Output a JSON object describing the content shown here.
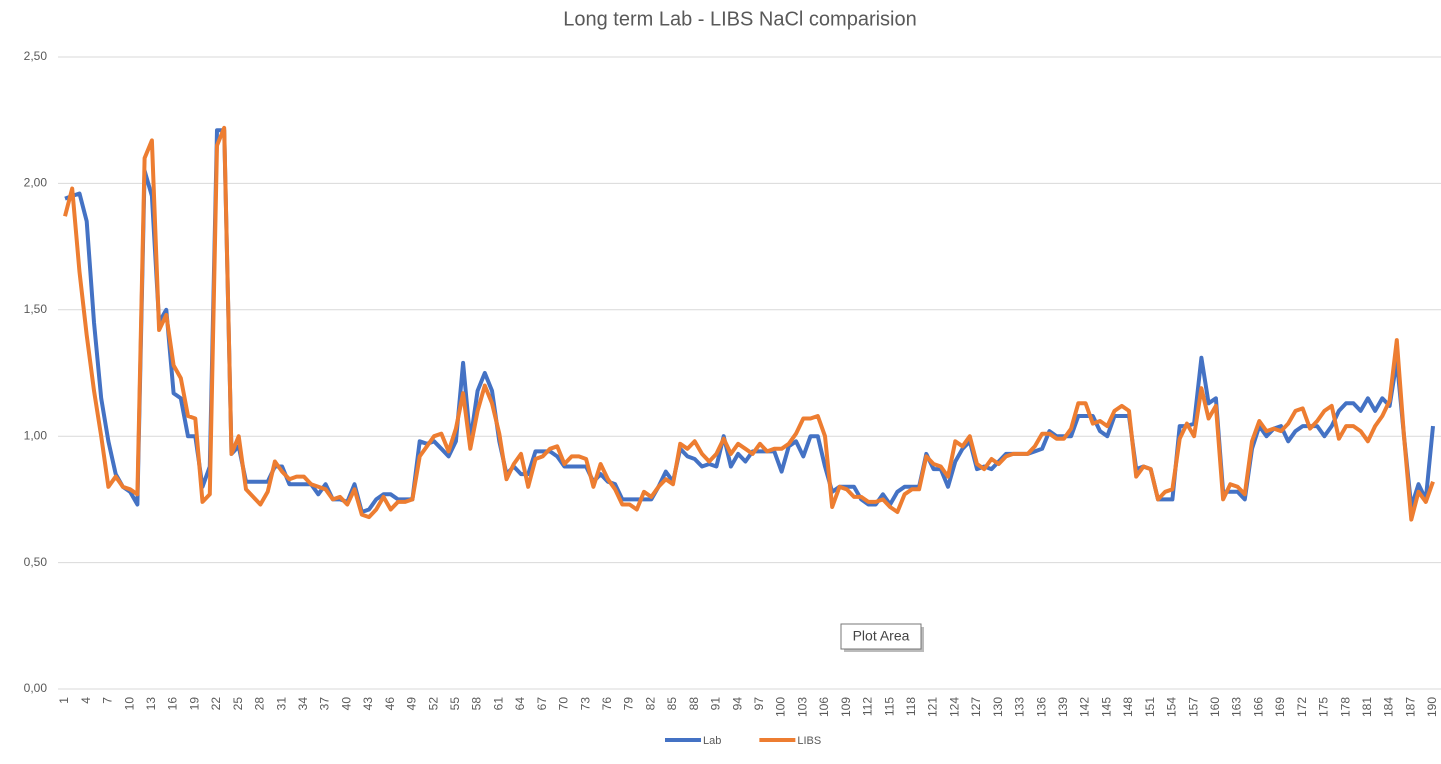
{
  "chart_data": {
    "type": "line",
    "title": "Long term Lab - LIBS NaCl comparision",
    "tooltip": "Plot Area",
    "x": [
      1,
      2,
      3,
      4,
      5,
      6,
      7,
      8,
      9,
      10,
      11,
      12,
      13,
      14,
      15,
      16,
      17,
      18,
      19,
      20,
      21,
      22,
      23,
      24,
      25,
      26,
      27,
      28,
      29,
      30,
      31,
      32,
      33,
      34,
      35,
      36,
      37,
      38,
      39,
      40,
      41,
      42,
      43,
      44,
      45,
      46,
      47,
      48,
      49,
      50,
      51,
      52,
      53,
      54,
      55,
      56,
      57,
      58,
      59,
      60,
      61,
      62,
      63,
      64,
      65,
      66,
      67,
      68,
      69,
      70,
      71,
      72,
      73,
      74,
      75,
      76,
      77,
      78,
      79,
      80,
      81,
      82,
      83,
      84,
      85,
      86,
      87,
      88,
      89,
      90,
      91,
      92,
      93,
      94,
      95,
      96,
      97,
      98,
      99,
      100,
      101,
      102,
      103,
      104,
      105,
      106,
      107,
      108,
      109,
      110,
      111,
      112,
      113,
      114,
      115,
      116,
      117,
      118,
      119,
      120,
      121,
      122,
      123,
      124,
      125,
      126,
      127,
      128,
      129,
      130,
      131,
      132,
      133,
      134,
      135,
      136,
      137,
      138,
      139,
      140,
      141,
      142,
      143,
      144,
      145,
      146,
      147,
      148,
      149,
      150,
      151,
      152,
      153,
      154,
      155,
      156,
      157,
      158,
      159,
      160,
      161,
      162,
      163,
      164,
      165,
      166,
      167,
      168,
      169,
      170,
      171,
      172,
      173,
      174,
      175,
      176,
      177,
      178,
      179,
      180,
      181,
      182,
      183,
      184,
      185,
      186,
      187,
      188,
      189,
      190
    ],
    "xlim": [
      1,
      190
    ],
    "xticks": [
      1,
      4,
      7,
      10,
      13,
      16,
      19,
      22,
      25,
      28,
      31,
      34,
      37,
      40,
      43,
      46,
      49,
      52,
      55,
      58,
      61,
      64,
      67,
      70,
      73,
      76,
      79,
      82,
      85,
      88,
      91,
      94,
      97,
      100,
      103,
      106,
      109,
      112,
      115,
      118,
      121,
      124,
      127,
      130,
      133,
      136,
      139,
      142,
      145,
      148,
      151,
      154,
      157,
      160,
      163,
      166,
      169,
      172,
      175,
      178,
      181,
      184,
      187,
      190
    ],
    "ylim": [
      0,
      2.5
    ],
    "yticks": [
      {
        "value": 0,
        "label": "0,00"
      },
      {
        "value": 0.5,
        "label": "0,50"
      },
      {
        "value": 1,
        "label": "1,00"
      },
      {
        "value": 1.5,
        "label": "1,50"
      },
      {
        "value": 2,
        "label": "2,00"
      },
      {
        "value": 2.5,
        "label": "2,50"
      }
    ],
    "grid": true,
    "legend": "bottom",
    "series": [
      {
        "name": "Lab",
        "color": "#4472c4",
        "values": [
          1.94,
          1.95,
          1.96,
          1.85,
          1.45,
          1.15,
          0.98,
          0.85,
          0.8,
          0.78,
          0.73,
          2.05,
          1.95,
          1.45,
          1.5,
          1.17,
          1.15,
          1.0,
          1.0,
          0.8,
          0.88,
          2.21,
          2.21,
          0.93,
          0.96,
          0.82,
          0.82,
          0.82,
          0.82,
          0.88,
          0.88,
          0.81,
          0.81,
          0.81,
          0.81,
          0.77,
          0.81,
          0.75,
          0.75,
          0.74,
          0.81,
          0.7,
          0.71,
          0.75,
          0.77,
          0.77,
          0.75,
          0.75,
          0.75,
          0.98,
          0.97,
          0.98,
          0.95,
          0.92,
          0.98,
          1.29,
          0.98,
          1.18,
          1.25,
          1.18,
          0.98,
          0.85,
          0.88,
          0.85,
          0.85,
          0.94,
          0.94,
          0.94,
          0.92,
          0.88,
          0.88,
          0.88,
          0.88,
          0.82,
          0.85,
          0.82,
          0.81,
          0.75,
          0.75,
          0.75,
          0.75,
          0.75,
          0.8,
          0.86,
          0.82,
          0.95,
          0.92,
          0.91,
          0.88,
          0.89,
          0.88,
          1.0,
          0.88,
          0.93,
          0.9,
          0.94,
          0.94,
          0.94,
          0.94,
          0.86,
          0.96,
          0.98,
          0.92,
          1.0,
          1.0,
          0.88,
          0.78,
          0.8,
          0.8,
          0.8,
          0.75,
          0.73,
          0.73,
          0.77,
          0.73,
          0.78,
          0.8,
          0.8,
          0.8,
          0.93,
          0.87,
          0.87,
          0.8,
          0.9,
          0.95,
          0.98,
          0.87,
          0.88,
          0.87,
          0.9,
          0.93,
          0.93,
          0.93,
          0.93,
          0.94,
          0.95,
          1.02,
          1.0,
          1.0,
          1.0,
          1.08,
          1.08,
          1.08,
          1.02,
          1.0,
          1.08,
          1.08,
          1.08,
          0.87,
          0.88,
          0.87,
          0.75,
          0.75,
          0.75,
          1.04,
          1.04,
          1.05,
          1.31,
          1.13,
          1.15,
          0.78,
          0.78,
          0.78,
          0.75,
          0.95,
          1.04,
          1.0,
          1.03,
          1.04,
          0.98,
          1.02,
          1.04,
          1.04,
          1.04,
          1.0,
          1.04,
          1.1,
          1.13,
          1.13,
          1.1,
          1.15,
          1.1,
          1.15,
          1.12,
          1.3,
          1.0,
          0.72,
          0.81,
          0.75,
          1.04
        ]
      },
      {
        "name": "LIBS",
        "color": "#ed7d31",
        "values": [
          1.87,
          1.98,
          1.65,
          1.4,
          1.18,
          1.0,
          0.8,
          0.84,
          0.8,
          0.79,
          0.77,
          2.1,
          2.17,
          1.42,
          1.48,
          1.28,
          1.23,
          1.08,
          1.07,
          0.74,
          0.77,
          2.15,
          2.22,
          0.93,
          1.0,
          0.79,
          0.76,
          0.73,
          0.78,
          0.9,
          0.86,
          0.83,
          0.84,
          0.84,
          0.81,
          0.8,
          0.79,
          0.75,
          0.76,
          0.73,
          0.79,
          0.69,
          0.68,
          0.71,
          0.76,
          0.71,
          0.74,
          0.74,
          0.75,
          0.92,
          0.96,
          1.0,
          1.01,
          0.94,
          1.03,
          1.17,
          0.95,
          1.1,
          1.2,
          1.13,
          1.01,
          0.83,
          0.89,
          0.93,
          0.8,
          0.91,
          0.92,
          0.95,
          0.96,
          0.89,
          0.92,
          0.92,
          0.91,
          0.8,
          0.89,
          0.83,
          0.79,
          0.73,
          0.73,
          0.71,
          0.78,
          0.76,
          0.8,
          0.83,
          0.81,
          0.97,
          0.95,
          0.98,
          0.93,
          0.9,
          0.93,
          0.99,
          0.93,
          0.97,
          0.95,
          0.93,
          0.97,
          0.94,
          0.95,
          0.95,
          0.97,
          1.01,
          1.07,
          1.07,
          1.08,
          1.0,
          0.72,
          0.8,
          0.79,
          0.76,
          0.76,
          0.74,
          0.74,
          0.75,
          0.72,
          0.7,
          0.77,
          0.79,
          0.79,
          0.92,
          0.89,
          0.88,
          0.84,
          0.98,
          0.96,
          1.0,
          0.89,
          0.87,
          0.91,
          0.89,
          0.92,
          0.93,
          0.93,
          0.93,
          0.96,
          1.01,
          1.01,
          0.99,
          0.99,
          1.03,
          1.13,
          1.13,
          1.05,
          1.06,
          1.04,
          1.1,
          1.12,
          1.1,
          0.84,
          0.88,
          0.87,
          0.75,
          0.78,
          0.79,
          0.99,
          1.05,
          1.0,
          1.19,
          1.07,
          1.12,
          0.75,
          0.81,
          0.8,
          0.77,
          0.98,
          1.06,
          1.02,
          1.03,
          1.02,
          1.05,
          1.1,
          1.11,
          1.03,
          1.06,
          1.1,
          1.12,
          0.99,
          1.04,
          1.04,
          1.02,
          0.98,
          1.04,
          1.08,
          1.14,
          1.38,
          1.0,
          0.67,
          0.78,
          0.74,
          0.82
        ]
      }
    ]
  }
}
